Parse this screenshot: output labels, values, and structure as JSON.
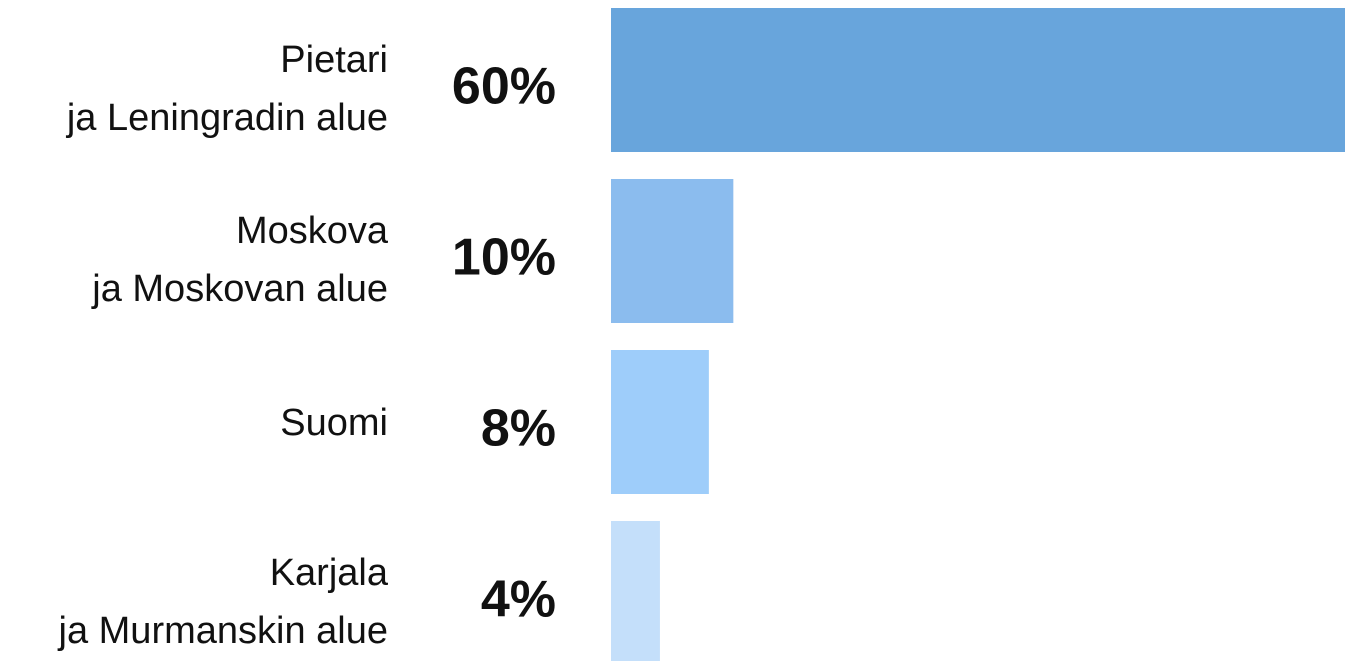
{
  "chart_data": {
    "type": "bar",
    "orientation": "horizontal",
    "categories": [
      [
        "Pietari",
        "ja Leningradin alue"
      ],
      [
        "Moskova",
        "ja Moskovan alue"
      ],
      [
        "Suomi"
      ],
      [
        "Karjala",
        "ja Murmanskin alue"
      ]
    ],
    "values": [
      60,
      10,
      8,
      4
    ],
    "value_labels": [
      "60%",
      "10%",
      "8%",
      "4%"
    ],
    "colors": [
      "#68a5dc",
      "#8bbcee",
      "#9ecdfa",
      "#c4dffa"
    ]
  }
}
